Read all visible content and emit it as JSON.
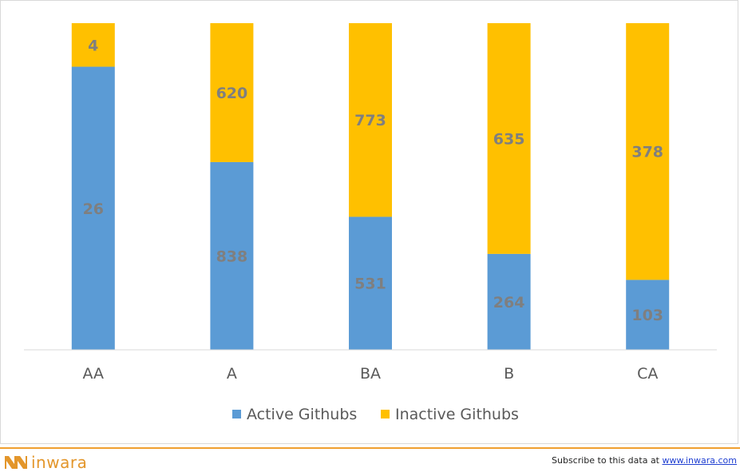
{
  "chart_data": {
    "type": "bar",
    "stacked": true,
    "normalized": true,
    "categories": [
      "AA",
      "A",
      "BA",
      "B",
      "CA"
    ],
    "series": [
      {
        "name": "Active Githubs",
        "values": [
          26,
          838,
          531,
          264,
          103
        ],
        "color": "#5b9bd5"
      },
      {
        "name": "Inactive Githubs",
        "values": [
          4,
          620,
          773,
          635,
          378
        ],
        "color": "#ffc000"
      }
    ],
    "legend_position": "bottom",
    "grid": false
  },
  "footer": {
    "brand": "inwara",
    "subscribe_text": "Subscribe to this data at ",
    "subscribe_link": "www.inwara.com"
  }
}
